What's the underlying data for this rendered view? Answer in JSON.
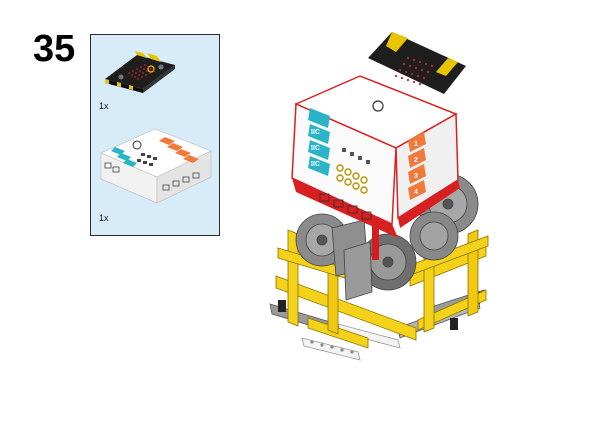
{
  "step": {
    "number": "35"
  },
  "parts": [
    {
      "name": "micro:bit board",
      "icon": "microbit-icon",
      "quantity": "1x"
    },
    {
      "name": "Nezha expansion board",
      "icon": "expansion-board-icon",
      "quantity": "1x"
    }
  ],
  "expansion_board": {
    "left_ports": [
      "IIC",
      "IIC",
      "IIC"
    ],
    "right_ports": [
      "1",
      "2",
      "3",
      "4"
    ]
  },
  "colors": {
    "panel_bg": "#d7ebf8",
    "frame_yellow": "#f5d21a",
    "gear_gray": "#8a8a8a",
    "board_white": "#ffffff",
    "board_red": "#e02424",
    "port_blue": "#2bb3c7",
    "port_orange": "#f07a3c",
    "microbit_black": "#1e1e1e"
  }
}
